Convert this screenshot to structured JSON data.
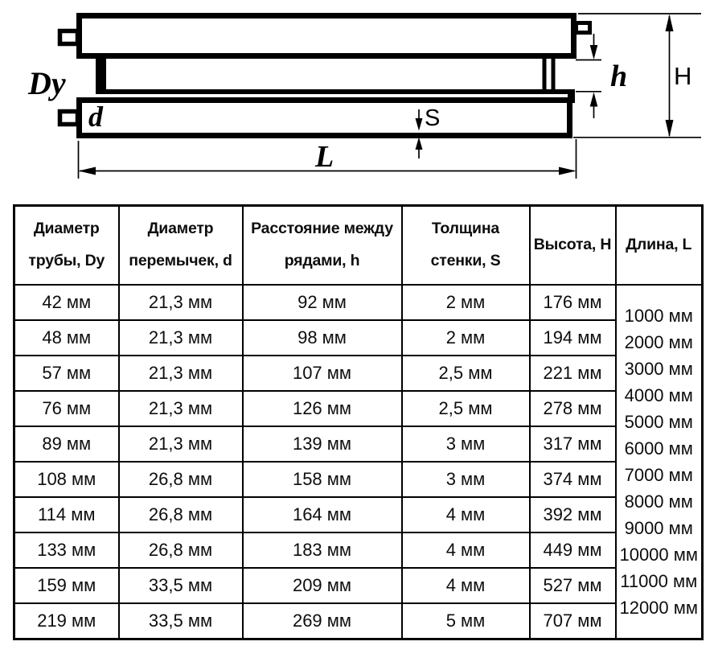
{
  "diagram": {
    "labels": {
      "pipe_diameter": "Dy",
      "jumper_diameter": "d",
      "wall_thickness": "S",
      "length": "L",
      "row_spacing": "h",
      "height": "H"
    }
  },
  "table": {
    "columns": [
      "Диаметр трубы, Dy",
      "Диаметр перемычек, d",
      "Расстояние между рядами, h",
      "Толщина стенки, S",
      "Высота, H",
      "Длина, L"
    ],
    "rows": [
      [
        "42 мм",
        "21,3 мм",
        "92 мм",
        "2 мм",
        "176 мм"
      ],
      [
        "48 мм",
        "21,3 мм",
        "98 мм",
        "2 мм",
        "194 мм"
      ],
      [
        "57 мм",
        "21,3 мм",
        "107 мм",
        "2,5 мм",
        "221 мм"
      ],
      [
        "76 мм",
        "21,3 мм",
        "126 мм",
        "2,5 мм",
        "278 мм"
      ],
      [
        "89 мм",
        "21,3 мм",
        "139 мм",
        "3 мм",
        "317 мм"
      ],
      [
        "108 мм",
        "26,8 мм",
        "158 мм",
        "3 мм",
        "374 мм"
      ],
      [
        "114 мм",
        "26,8 мм",
        "164 мм",
        "4 мм",
        "392 мм"
      ],
      [
        "133 мм",
        "26,8 мм",
        "183 мм",
        "4 мм",
        "449 мм"
      ],
      [
        "159 мм",
        "33,5 мм",
        "209 мм",
        "4 мм",
        "527 мм"
      ],
      [
        "219 мм",
        "33,5 мм",
        "269 мм",
        "5 мм",
        "707 мм"
      ]
    ],
    "lengths": [
      "1000 мм",
      "2000 мм",
      "3000 мм",
      "4000 мм",
      "5000 мм",
      "6000 мм",
      "7000 мм",
      "8000 мм",
      "9000 мм",
      "10000 мм",
      "11000 мм",
      "12000 мм"
    ]
  },
  "colors": {
    "line": "#000000",
    "background": "#ffffff",
    "text": "#0d0d0d"
  }
}
